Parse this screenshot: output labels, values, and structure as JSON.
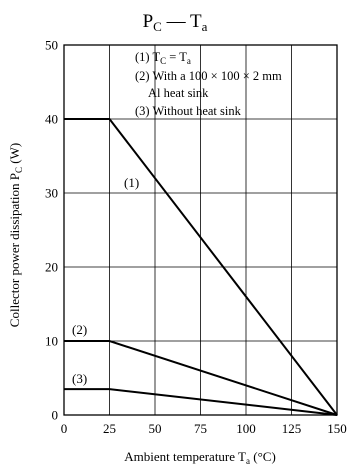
{
  "chart_data": {
    "type": "line",
    "title": {
      "main": "P",
      "main_sub": "C",
      "dash": " — ",
      "second": "T",
      "second_sub": "a"
    },
    "xlabel": {
      "text": "Ambient temperature  T",
      "sub": "a",
      "unit": " (°C)"
    },
    "ylabel": {
      "text": "Collector power dissipation  P",
      "sub": "C",
      "unit": " (W)"
    },
    "xlim": [
      0,
      150
    ],
    "ylim": [
      0,
      50
    ],
    "xticks": [
      0,
      25,
      50,
      75,
      100,
      125,
      150
    ],
    "yticks": [
      0,
      10,
      20,
      30,
      40,
      50
    ],
    "grid": true,
    "legend_placement": "top-right",
    "legend": [
      {
        "num": "(1) ",
        "parts": [
          [
            "T",
            ""
          ],
          [
            "C",
            "sub"
          ],
          [
            " = T",
            ""
          ],
          [
            "a",
            "sub"
          ]
        ]
      },
      {
        "num": "(2) ",
        "parts": [
          [
            "With a 100 × 100 × 2 mm",
            ""
          ]
        ]
      },
      {
        "num": "",
        "parts": [
          [
            "Al heat sink",
            ""
          ]
        ]
      },
      {
        "num": "(3) ",
        "parts": [
          [
            "Without heat sink",
            ""
          ]
        ]
      }
    ],
    "series": [
      {
        "name": "(1)",
        "x": [
          0,
          25,
          150
        ],
        "y": [
          40,
          40,
          0
        ]
      },
      {
        "name": "(2)",
        "x": [
          0,
          25,
          150
        ],
        "y": [
          10,
          10,
          0
        ]
      },
      {
        "name": "(3)",
        "x": [
          0,
          25,
          150
        ],
        "y": [
          3.5,
          3.5,
          0
        ]
      }
    ]
  }
}
